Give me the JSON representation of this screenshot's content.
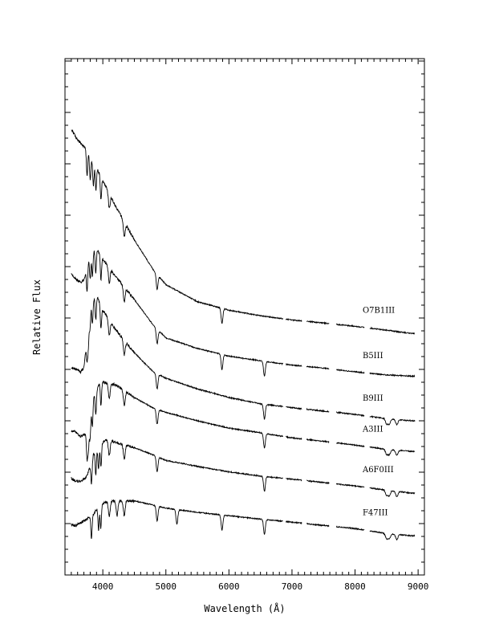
{
  "chart_data": {
    "type": "line",
    "title": "",
    "xlabel": "Wavelength (Å)",
    "ylabel": "Relative Flux",
    "xlim": [
      3400,
      9100
    ],
    "x_ticks": [
      4000,
      5000,
      6000,
      7000,
      8000,
      9000
    ],
    "x_tick_labels": [
      "4000",
      "5000",
      "6000",
      "7000",
      "8000",
      "9000"
    ],
    "y_tick_labels_shown": false,
    "grid": false,
    "legend": "none",
    "line_color": "#000000",
    "series": [
      {
        "name": "O7B1III",
        "points": [
          [
            3500,
            10.0
          ],
          [
            3600,
            9.75
          ],
          [
            3700,
            9.6
          ],
          [
            3800,
            9.35
          ],
          [
            3900,
            9.1
          ],
          [
            4000,
            8.8
          ],
          [
            4200,
            8.2
          ],
          [
            4500,
            7.4
          ],
          [
            4800,
            6.7
          ],
          [
            5000,
            6.35
          ],
          [
            5500,
            5.95
          ],
          [
            6000,
            5.75
          ],
          [
            6500,
            5.62
          ],
          [
            7000,
            5.52
          ],
          [
            7500,
            5.45
          ],
          [
            8000,
            5.37
          ],
          [
            8500,
            5.28
          ],
          [
            8900,
            5.2
          ]
        ],
        "absorption_lines": [
          3750,
          3800,
          3850,
          3890,
          3970,
          4102,
          4340,
          4861,
          5890
        ]
      },
      {
        "name": "B5III",
        "points": [
          [
            3500,
            6.6
          ],
          [
            3600,
            6.45
          ],
          [
            3650,
            6.4
          ],
          [
            3700,
            6.45
          ],
          [
            3800,
            7.05
          ],
          [
            3900,
            7.2
          ],
          [
            4000,
            6.95
          ],
          [
            4200,
            6.55
          ],
          [
            4500,
            6.0
          ],
          [
            4800,
            5.4
          ],
          [
            5000,
            5.1
          ],
          [
            5500,
            4.85
          ],
          [
            6000,
            4.67
          ],
          [
            6500,
            4.56
          ],
          [
            7000,
            4.46
          ],
          [
            7500,
            4.39
          ],
          [
            8000,
            4.3
          ],
          [
            8500,
            4.23
          ],
          [
            8900,
            4.2
          ]
        ],
        "absorption_lines": [
          3750,
          3800,
          3835,
          3889,
          3970,
          4102,
          4340,
          4861,
          5890,
          6563
        ]
      },
      {
        "name": "B9III",
        "points": [
          [
            3500,
            4.4
          ],
          [
            3600,
            4.35
          ],
          [
            3650,
            4.3
          ],
          [
            3700,
            4.4
          ],
          [
            3800,
            5.9
          ],
          [
            3900,
            6.1
          ],
          [
            4000,
            5.75
          ],
          [
            4200,
            5.3
          ],
          [
            4500,
            4.75
          ],
          [
            4800,
            4.3
          ],
          [
            5000,
            4.15
          ],
          [
            5500,
            3.9
          ],
          [
            6000,
            3.7
          ],
          [
            6500,
            3.55
          ],
          [
            7000,
            3.46
          ],
          [
            7500,
            3.38
          ],
          [
            8000,
            3.3
          ],
          [
            8500,
            3.2
          ],
          [
            8900,
            3.15
          ]
        ],
        "absorption_lines": [
          3750,
          3770,
          3797,
          3835,
          3889,
          3970,
          4102,
          4340,
          4861,
          6563,
          8500,
          8542,
          8662
        ]
      },
      {
        "name": "A3III",
        "points": [
          [
            3500,
            2.9
          ],
          [
            3550,
            2.92
          ],
          [
            3650,
            2.78
          ],
          [
            3750,
            2.85
          ],
          [
            3850,
            3.7
          ],
          [
            3950,
            4.05
          ],
          [
            4050,
            4.05
          ],
          [
            4200,
            4.0
          ],
          [
            4500,
            3.7
          ],
          [
            4800,
            3.45
          ],
          [
            5000,
            3.35
          ],
          [
            5500,
            3.15
          ],
          [
            6000,
            2.98
          ],
          [
            6500,
            2.87
          ],
          [
            7000,
            2.75
          ],
          [
            7500,
            2.67
          ],
          [
            8000,
            2.58
          ],
          [
            8500,
            2.48
          ],
          [
            8900,
            2.43
          ]
        ],
        "absorption_lines": [
          3750,
          3770,
          3797,
          3835,
          3889,
          3970,
          4102,
          4340,
          4861,
          6563,
          8500,
          8542,
          8662
        ]
      },
      {
        "name": "A6F0III",
        "points": [
          [
            3500,
            1.8
          ],
          [
            3550,
            1.75
          ],
          [
            3650,
            1.72
          ],
          [
            3750,
            1.85
          ],
          [
            3850,
            2.35
          ],
          [
            3950,
            2.6
          ],
          [
            4050,
            2.7
          ],
          [
            4200,
            2.65
          ],
          [
            4500,
            2.52
          ],
          [
            4800,
            2.35
          ],
          [
            5000,
            2.22
          ],
          [
            5500,
            2.08
          ],
          [
            6000,
            1.95
          ],
          [
            6500,
            1.85
          ],
          [
            7000,
            1.78
          ],
          [
            7500,
            1.7
          ],
          [
            8000,
            1.62
          ],
          [
            8500,
            1.52
          ],
          [
            8900,
            1.45
          ]
        ],
        "absorption_lines": [
          3820,
          3889,
          3933,
          3970,
          4102,
          4340,
          4861,
          6563,
          8500,
          8542,
          8662
        ]
      },
      {
        "name": "F47III",
        "points": [
          [
            3500,
            0.72
          ],
          [
            3550,
            0.68
          ],
          [
            3650,
            0.75
          ],
          [
            3750,
            0.85
          ],
          [
            3850,
            0.95
          ],
          [
            3950,
            1.18
          ],
          [
            4050,
            1.25
          ],
          [
            4200,
            1.27
          ],
          [
            4500,
            1.27
          ],
          [
            4800,
            1.17
          ],
          [
            5000,
            1.1
          ],
          [
            5500,
            1.0
          ],
          [
            6000,
            0.92
          ],
          [
            6500,
            0.84
          ],
          [
            7000,
            0.77
          ],
          [
            7500,
            0.69
          ],
          [
            8000,
            0.62
          ],
          [
            8500,
            0.5
          ],
          [
            8900,
            0.45
          ]
        ],
        "absorption_lines": [
          3820,
          3933,
          3968,
          4102,
          4226,
          4340,
          4861,
          5175,
          5890,
          6563,
          8500,
          8542,
          8662
        ]
      }
    ],
    "spectrum_labels": [
      "O7B1III",
      "B5III",
      "B9III",
      "A3III",
      "A6F0III",
      "F47III"
    ]
  }
}
